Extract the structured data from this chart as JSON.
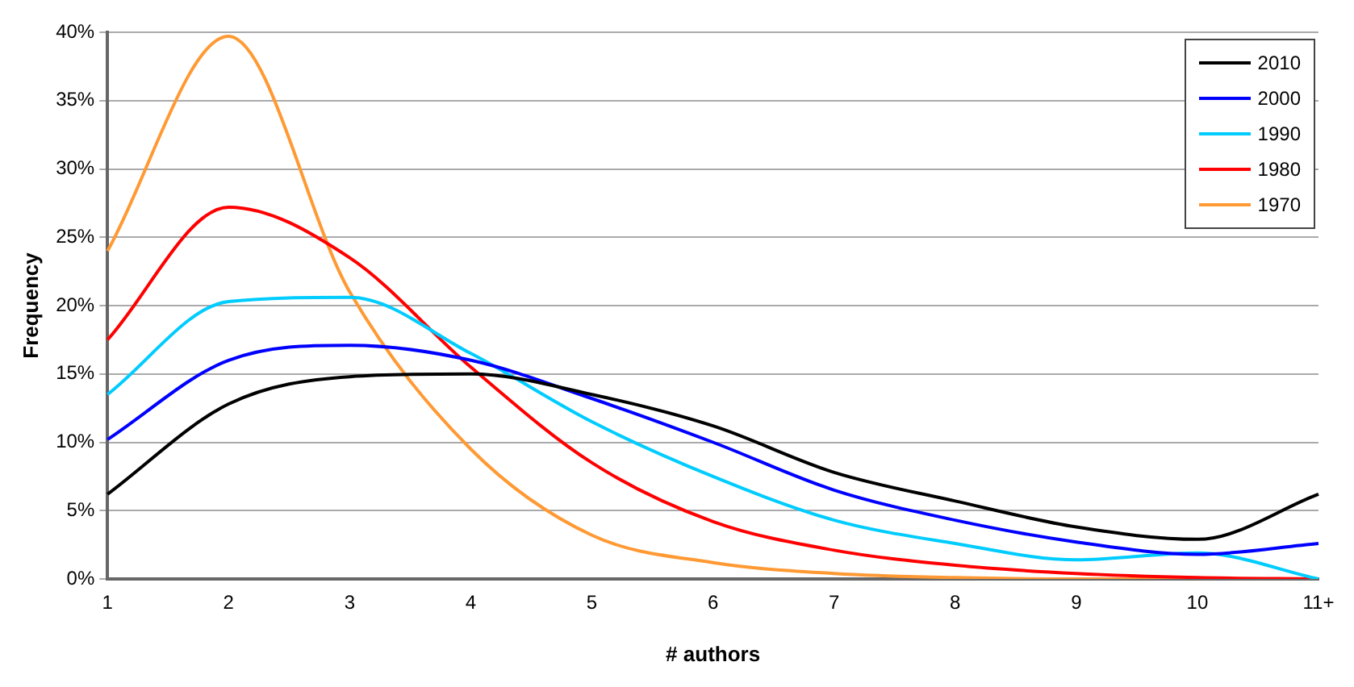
{
  "chart_data": {
    "type": "line",
    "xlabel": "# authors",
    "ylabel": "Frequency",
    "categories": [
      "1",
      "2",
      "3",
      "4",
      "5",
      "6",
      "7",
      "8",
      "9",
      "10",
      "11+"
    ],
    "series": [
      {
        "name": "2010",
        "color": "#000000",
        "values": [
          6.2,
          12.8,
          14.8,
          15.0,
          13.5,
          11.2,
          7.8,
          5.7,
          3.8,
          2.9,
          6.2
        ]
      },
      {
        "name": "2000",
        "color": "#0000ff",
        "values": [
          10.2,
          16.0,
          17.1,
          16.0,
          13.2,
          10.0,
          6.5,
          4.3,
          2.7,
          1.8,
          2.6
        ]
      },
      {
        "name": "1990",
        "color": "#00ccff",
        "values": [
          13.5,
          20.3,
          20.6,
          16.5,
          11.5,
          7.5,
          4.3,
          2.6,
          1.4,
          1.9,
          0
        ]
      },
      {
        "name": "1980",
        "color": "#ff0000",
        "values": [
          17.5,
          27.2,
          23.5,
          15.5,
          8.5,
          4.2,
          2.1,
          1.0,
          0.4,
          0.1,
          0
        ]
      },
      {
        "name": "1970",
        "color": "#ff9933",
        "values": [
          24,
          39.7,
          21,
          9.5,
          3.2,
          1.2,
          0.4,
          0.1,
          0,
          0,
          0
        ]
      }
    ],
    "ylim": [
      0,
      40
    ],
    "yticks": [
      {
        "value": 0,
        "label": "0%"
      },
      {
        "value": 5,
        "label": "5%"
      },
      {
        "value": 10,
        "label": "10%"
      },
      {
        "value": 15,
        "label": "15%"
      },
      {
        "value": 20,
        "label": "20%"
      },
      {
        "value": 25,
        "label": "25%"
      },
      {
        "value": 30,
        "label": "30%"
      },
      {
        "value": 35,
        "label": "35%"
      },
      {
        "value": 40,
        "label": "40%"
      }
    ],
    "grid": "y",
    "legend": "top right",
    "marker": "none",
    "line_style": "solid"
  }
}
